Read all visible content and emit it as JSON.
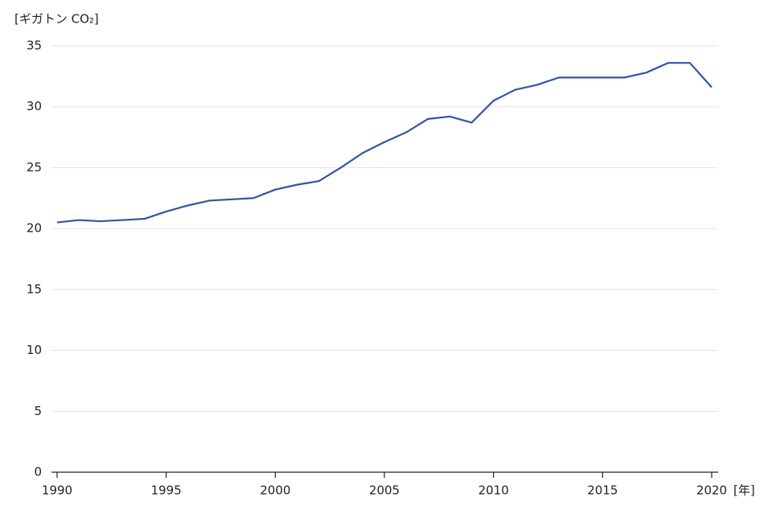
{
  "chart_data": {
    "type": "line",
    "y_label": "[ギガトン CO₂]",
    "x_label": "[年]",
    "x": [
      1990,
      1991,
      1992,
      1993,
      1994,
      1995,
      1996,
      1997,
      1998,
      1999,
      2000,
      2001,
      2002,
      2003,
      2004,
      2005,
      2006,
      2007,
      2008,
      2009,
      2010,
      2011,
      2012,
      2013,
      2014,
      2015,
      2016,
      2017,
      2018,
      2019,
      2020
    ],
    "series": [
      {
        "color": "#2f55a4",
        "values": [
          20.5,
          20.7,
          20.6,
          20.7,
          20.8,
          21.4,
          21.9,
          22.3,
          22.4,
          22.5,
          23.2,
          23.6,
          23.9,
          25.0,
          26.2,
          27.1,
          27.9,
          29.0,
          29.2,
          28.7,
          30.5,
          31.4,
          31.8,
          32.4,
          32.4,
          32.4,
          32.4,
          32.8,
          33.6,
          33.6,
          31.6
        ]
      }
    ],
    "xlim": [
      1990,
      2020
    ],
    "xticks": [
      1990,
      1995,
      2000,
      2005,
      2010,
      2015,
      2020
    ],
    "ylim": [
      0,
      35
    ],
    "yticks": [
      0,
      5,
      10,
      15,
      20,
      25,
      30,
      35
    ],
    "grid": true
  }
}
